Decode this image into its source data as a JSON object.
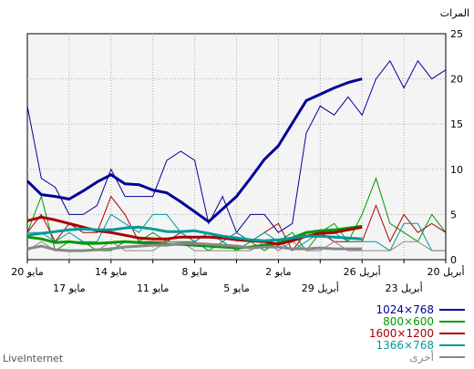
{
  "chart_data": {
    "type": "line",
    "ylabel": "المرات",
    "ylim": [
      0,
      25
    ],
    "yticks": [
      0,
      5,
      10,
      15,
      20,
      25
    ],
    "x_tick_labels_upper": [
      "20 مايو",
      "14 مايو",
      "8 مايو",
      "2 مايو",
      "26 أبريل",
      "20 أبريل"
    ],
    "x_tick_labels_lower": [
      "17 مايو",
      "11 مايو",
      "5 مايو",
      "29 أبريل",
      "23 أبريل"
    ],
    "grid": true,
    "legend_position": "bottom-right",
    "x_note": "31 daily points, index 0 = 20 مايو (left) to index 30 = 20 أبريل (right)",
    "series": [
      {
        "name": "1024×768",
        "color": "#000099",
        "values": [
          17,
          9,
          8,
          5,
          5,
          6,
          10,
          7,
          7,
          7,
          11,
          12,
          11,
          4,
          7,
          3,
          5,
          5,
          3,
          4,
          14,
          17,
          16,
          18,
          16,
          20,
          22,
          19,
          22,
          20,
          21
        ],
        "trend": [
          8.7,
          7.2,
          7.0,
          6.7,
          7.6,
          8.6,
          9.4,
          8.4,
          8.3,
          7.7,
          7.4,
          6.4,
          5.3,
          4.2,
          5.6,
          7.0,
          9.0,
          11.1,
          12.6,
          15.1,
          17.6,
          18.3,
          19.0,
          19.6,
          20.0
        ]
      },
      {
        "name": "800×600",
        "color": "#009900",
        "values": [
          3,
          7,
          1,
          2,
          2,
          1,
          1,
          2,
          2,
          3,
          2,
          2,
          2,
          1,
          2,
          1,
          2,
          1,
          2,
          3,
          1,
          3,
          4,
          2,
          5,
          9,
          4,
          3,
          2,
          5,
          3
        ],
        "trend": [
          2.5,
          2.3,
          1.9,
          2.0,
          1.8,
          1.8,
          1.9,
          2.0,
          1.9,
          1.8,
          1.7,
          1.7,
          1.6,
          1.5,
          1.4,
          1.3,
          1.4,
          1.6,
          1.8,
          2.4,
          3.0,
          3.2,
          3.3,
          3.5,
          3.7
        ]
      },
      {
        "name": "1600×1200",
        "color": "#aa0000",
        "values": [
          3,
          5,
          2,
          4,
          3,
          3,
          7,
          5,
          2,
          2,
          2,
          3,
          2,
          3,
          2,
          3,
          2,
          3,
          4,
          1,
          3,
          3,
          2,
          2,
          2,
          6,
          2,
          5,
          3,
          4,
          3
        ],
        "trend": [
          4.3,
          4.7,
          4.4,
          4.0,
          3.6,
          3.2,
          3.0,
          2.7,
          2.4,
          2.3,
          2.3,
          2.5,
          2.5,
          2.5,
          2.4,
          2.2,
          2.1,
          2.0,
          1.7,
          2.1,
          2.6,
          2.9,
          3.0,
          3.3,
          3.6
        ]
      },
      {
        "name": "1366×768",
        "color": "#009999",
        "values": [
          3,
          3,
          2,
          3,
          2,
          2,
          5,
          4,
          3,
          5,
          5,
          3,
          2,
          3,
          2,
          3,
          2,
          3,
          2,
          1,
          2,
          3,
          3,
          2,
          2,
          2,
          1,
          4,
          4,
          1,
          1
        ],
        "trend": [
          2.7,
          2.9,
          3.1,
          3.3,
          3.4,
          3.3,
          3.3,
          3.5,
          3.6,
          3.4,
          3.1,
          3.1,
          3.2,
          2.9,
          2.6,
          2.4,
          2.2,
          2.1,
          2.2,
          2.4,
          2.6,
          2.6,
          2.5,
          2.4,
          2.3
        ]
      },
      {
        "name": "أخرى",
        "color": "#888888",
        "values": [
          1,
          2,
          1,
          1,
          1,
          1,
          2,
          1,
          1,
          1,
          2,
          2,
          1,
          1,
          1,
          1,
          1,
          2,
          1,
          2,
          1,
          1,
          2,
          1,
          1,
          1,
          1,
          2,
          2,
          1,
          1
        ],
        "trend": [
          1.2,
          1.5,
          1.1,
          1.0,
          1.0,
          1.1,
          1.2,
          1.4,
          1.5,
          1.6,
          1.6,
          1.8,
          1.8,
          1.7,
          1.6,
          1.5,
          1.3,
          1.4,
          1.4,
          1.2,
          1.2,
          1.3,
          1.2,
          1.2,
          1.2
        ]
      }
    ]
  },
  "footer": {
    "brand": "LiveInternet"
  }
}
